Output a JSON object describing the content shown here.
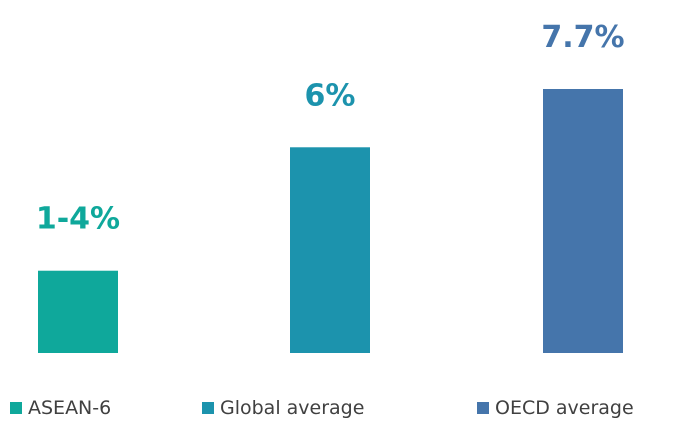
{
  "chart_data": {
    "type": "bar",
    "categories": [
      "ASEAN-6",
      "Global average",
      "OECD average"
    ],
    "values": [
      2.4,
      6,
      7.7
    ],
    "data_labels": [
      "1-4%",
      "6%",
      "7.7%"
    ],
    "colors": [
      "#0fa89b",
      "#1c93ad",
      "#4575ab"
    ],
    "ylim": [
      0,
      7.7
    ],
    "grid": false,
    "legend": "bottom"
  }
}
